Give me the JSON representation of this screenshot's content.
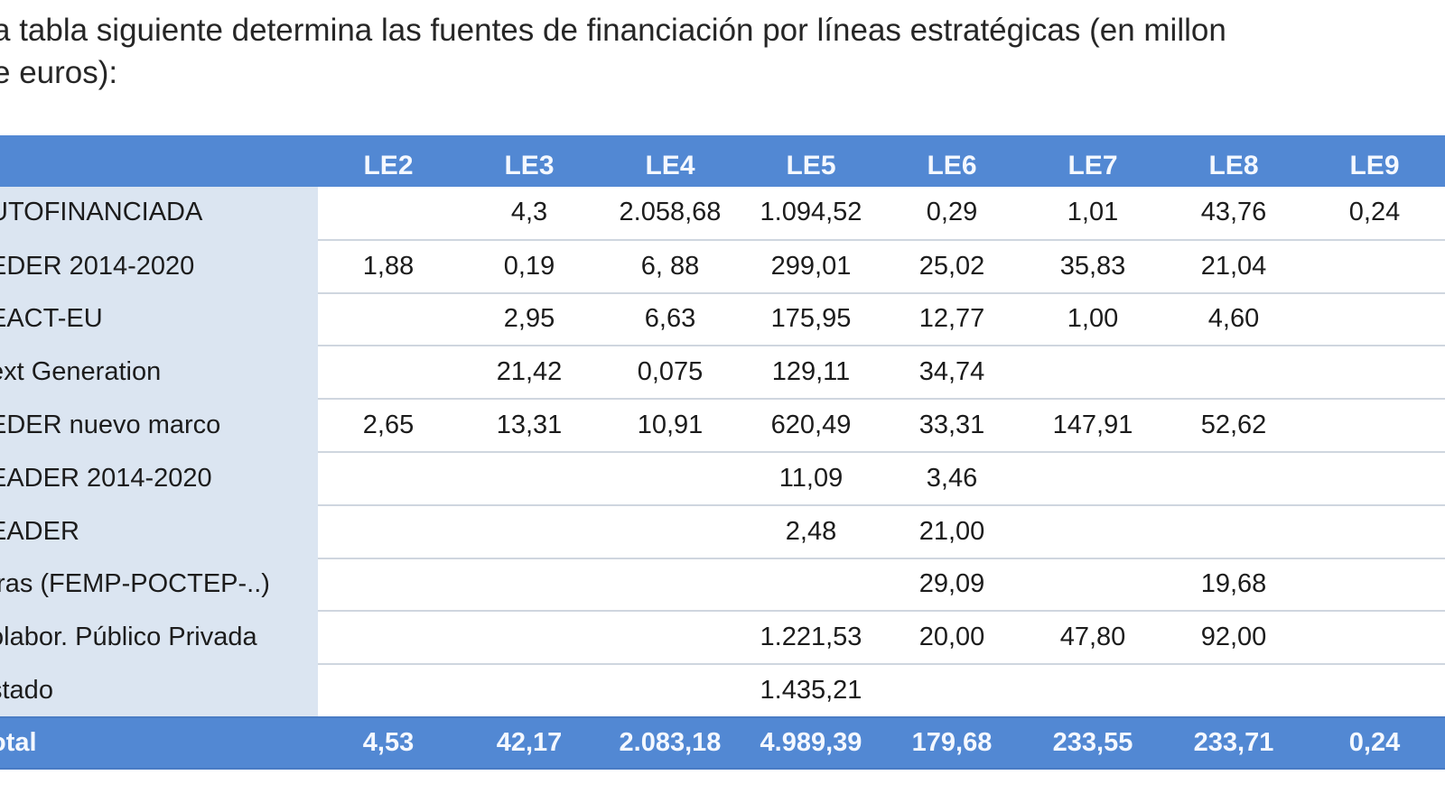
{
  "intro": {
    "line1": "a tabla siguiente determina las fuentes de financiación por líneas estratégicas (en millon",
    "line2": "e euros):"
  },
  "table": {
    "columns": [
      "",
      "LE2",
      "LE3",
      "LE4",
      "LE5",
      "LE6",
      "LE7",
      "LE8",
      "LE9"
    ],
    "rows": [
      {
        "label": "UTOFINANCIADA",
        "values": [
          "",
          "4,3",
          "2.058,68",
          "1.094,52",
          "0,29",
          "1,01",
          "43,76",
          "0,24"
        ]
      },
      {
        "label": "EDER 2014-2020",
        "values": [
          "1,88",
          "0,19",
          "6, 88",
          "299,01",
          "25,02",
          "35,83",
          "21,04",
          ""
        ]
      },
      {
        "label": "EACT-EU",
        "values": [
          "",
          "2,95",
          "6,63",
          "175,95",
          "12,77",
          "1,00",
          "4,60",
          ""
        ]
      },
      {
        "label": "ext Generation",
        "values": [
          "",
          "21,42",
          "0,075",
          "129,11",
          "34,74",
          "",
          "",
          ""
        ]
      },
      {
        "label": "EDER nuevo marco",
        "values": [
          "2,65",
          "13,31",
          "10,91",
          "620,49",
          "33,31",
          "147,91",
          "52,62",
          ""
        ]
      },
      {
        "label": "EADER 2014-2020",
        "values": [
          "",
          "",
          "",
          "11,09",
          "3,46",
          "",
          "",
          ""
        ]
      },
      {
        "label": "EADER",
        "values": [
          "",
          "",
          "",
          "2,48",
          "21,00",
          "",
          "",
          ""
        ]
      },
      {
        "label": "tras (FEMP-POCTEP-..)",
        "values": [
          "",
          "",
          "",
          "",
          "29,09",
          "",
          "19,68",
          ""
        ]
      },
      {
        "label": "olabor. Público Privada",
        "values": [
          "",
          "",
          "",
          "1.221,53",
          "20,00",
          "47,80",
          "92,00",
          ""
        ]
      },
      {
        "label": "stado",
        "values": [
          "",
          "",
          "",
          "1.435,21",
          "",
          "",
          "",
          ""
        ]
      }
    ],
    "total": {
      "label": "otal",
      "values": [
        "4,53",
        "42,17",
        "2.083,18",
        "4.989,39",
        "179,68",
        "233,55",
        "233,71",
        "0,24"
      ]
    }
  },
  "colors": {
    "header_bg": "#5288d3",
    "label_column_bg": "#dbe5f1",
    "row_divider": "#cfd6df"
  }
}
